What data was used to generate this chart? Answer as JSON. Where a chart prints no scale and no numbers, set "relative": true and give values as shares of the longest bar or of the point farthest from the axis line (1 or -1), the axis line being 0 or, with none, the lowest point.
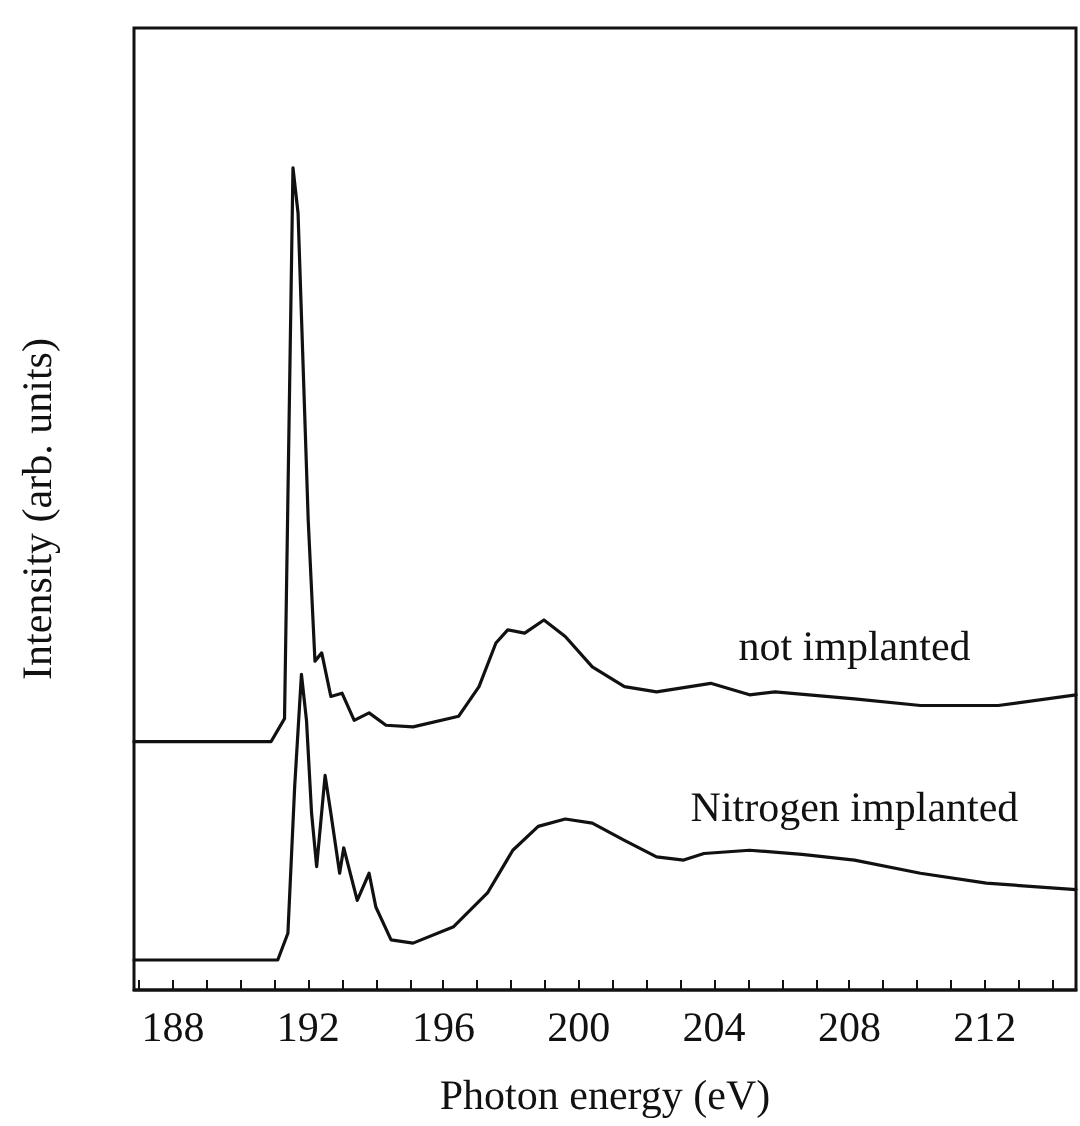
{
  "chart_data": {
    "type": "line",
    "relative": true,
    "xlabel": "Photon energy (eV)",
    "ylabel": "Intensity (arb. units)",
    "xlim": [
      186.85,
      214.7
    ],
    "xticks": [
      {
        "value": 187,
        "label": null
      },
      188,
      {
        "value": 189,
        "label": null
      },
      {
        "value": 190,
        "label": null
      },
      {
        "value": 191,
        "label": null
      },
      192,
      {
        "value": 193,
        "label": null
      },
      {
        "value": 194,
        "label": null
      },
      {
        "value": 195,
        "label": null
      },
      196,
      {
        "value": 197,
        "label": null
      },
      {
        "value": 198,
        "label": null
      },
      {
        "value": 199,
        "label": null
      },
      200,
      {
        "value": 201,
        "label": null
      },
      {
        "value": 202,
        "label": null
      },
      {
        "value": 203,
        "label": null
      },
      204,
      {
        "value": 205,
        "label": null
      },
      {
        "value": 206,
        "label": null
      },
      {
        "value": 207,
        "label": null
      },
      208,
      {
        "value": 209,
        "label": null
      },
      {
        "value": 210,
        "label": null
      },
      {
        "value": 211,
        "label": null
      },
      212,
      {
        "value": 213,
        "label": null
      },
      {
        "value": 214,
        "label": null
      }
    ],
    "grid": false,
    "legend": false,
    "marker": "none",
    "line_style": "solid",
    "series": [
      {
        "name": "not implanted",
        "color": "#111111",
        "x": [
          186.85,
          190.9,
          191.3,
          191.55,
          191.7,
          192.0,
          192.2,
          192.4,
          192.67,
          193.0,
          193.36,
          193.8,
          194.3,
          195.1,
          196.45,
          197.05,
          197.55,
          197.9,
          198.4,
          198.97,
          199.6,
          200.4,
          201.35,
          202.3,
          203.9,
          205.05,
          205.8,
          208.15,
          210.1,
          212.4,
          214.7
        ],
        "values": [
          0.302,
          0.302,
          0.33,
          1.0,
          0.945,
          0.572,
          0.4,
          0.41,
          0.357,
          0.361,
          0.328,
          0.337,
          0.322,
          0.32,
          0.333,
          0.369,
          0.422,
          0.438,
          0.434,
          0.45,
          0.43,
          0.393,
          0.369,
          0.3625,
          0.373,
          0.359,
          0.3625,
          0.354,
          0.346,
          0.346,
          0.359
        ]
      },
      {
        "name": "Nitrogen implanted",
        "color": "#111111",
        "x": [
          186.85,
          191.1,
          191.4,
          191.6,
          191.8,
          191.95,
          192.1,
          192.25,
          192.5,
          192.67,
          192.93,
          193.05,
          193.45,
          193.8,
          194.0,
          194.45,
          195.1,
          196.3,
          197.3,
          198.05,
          198.8,
          199.6,
          200.4,
          201.35,
          202.3,
          203.1,
          203.7,
          205.05,
          206.6,
          208.15,
          210.1,
          212.05,
          214.7
        ],
        "values": [
          0.0365,
          0.0365,
          0.069,
          0.247,
          0.384,
          0.328,
          0.215,
          0.15,
          0.261,
          0.215,
          0.142,
          0.173,
          0.109,
          0.142,
          0.101,
          0.061,
          0.057,
          0.077,
          0.118,
          0.17,
          0.199,
          0.208,
          0.203,
          0.182,
          0.162,
          0.158,
          0.166,
          0.17,
          0.165,
          0.158,
          0.142,
          0.13,
          0.122
        ]
      }
    ]
  }
}
